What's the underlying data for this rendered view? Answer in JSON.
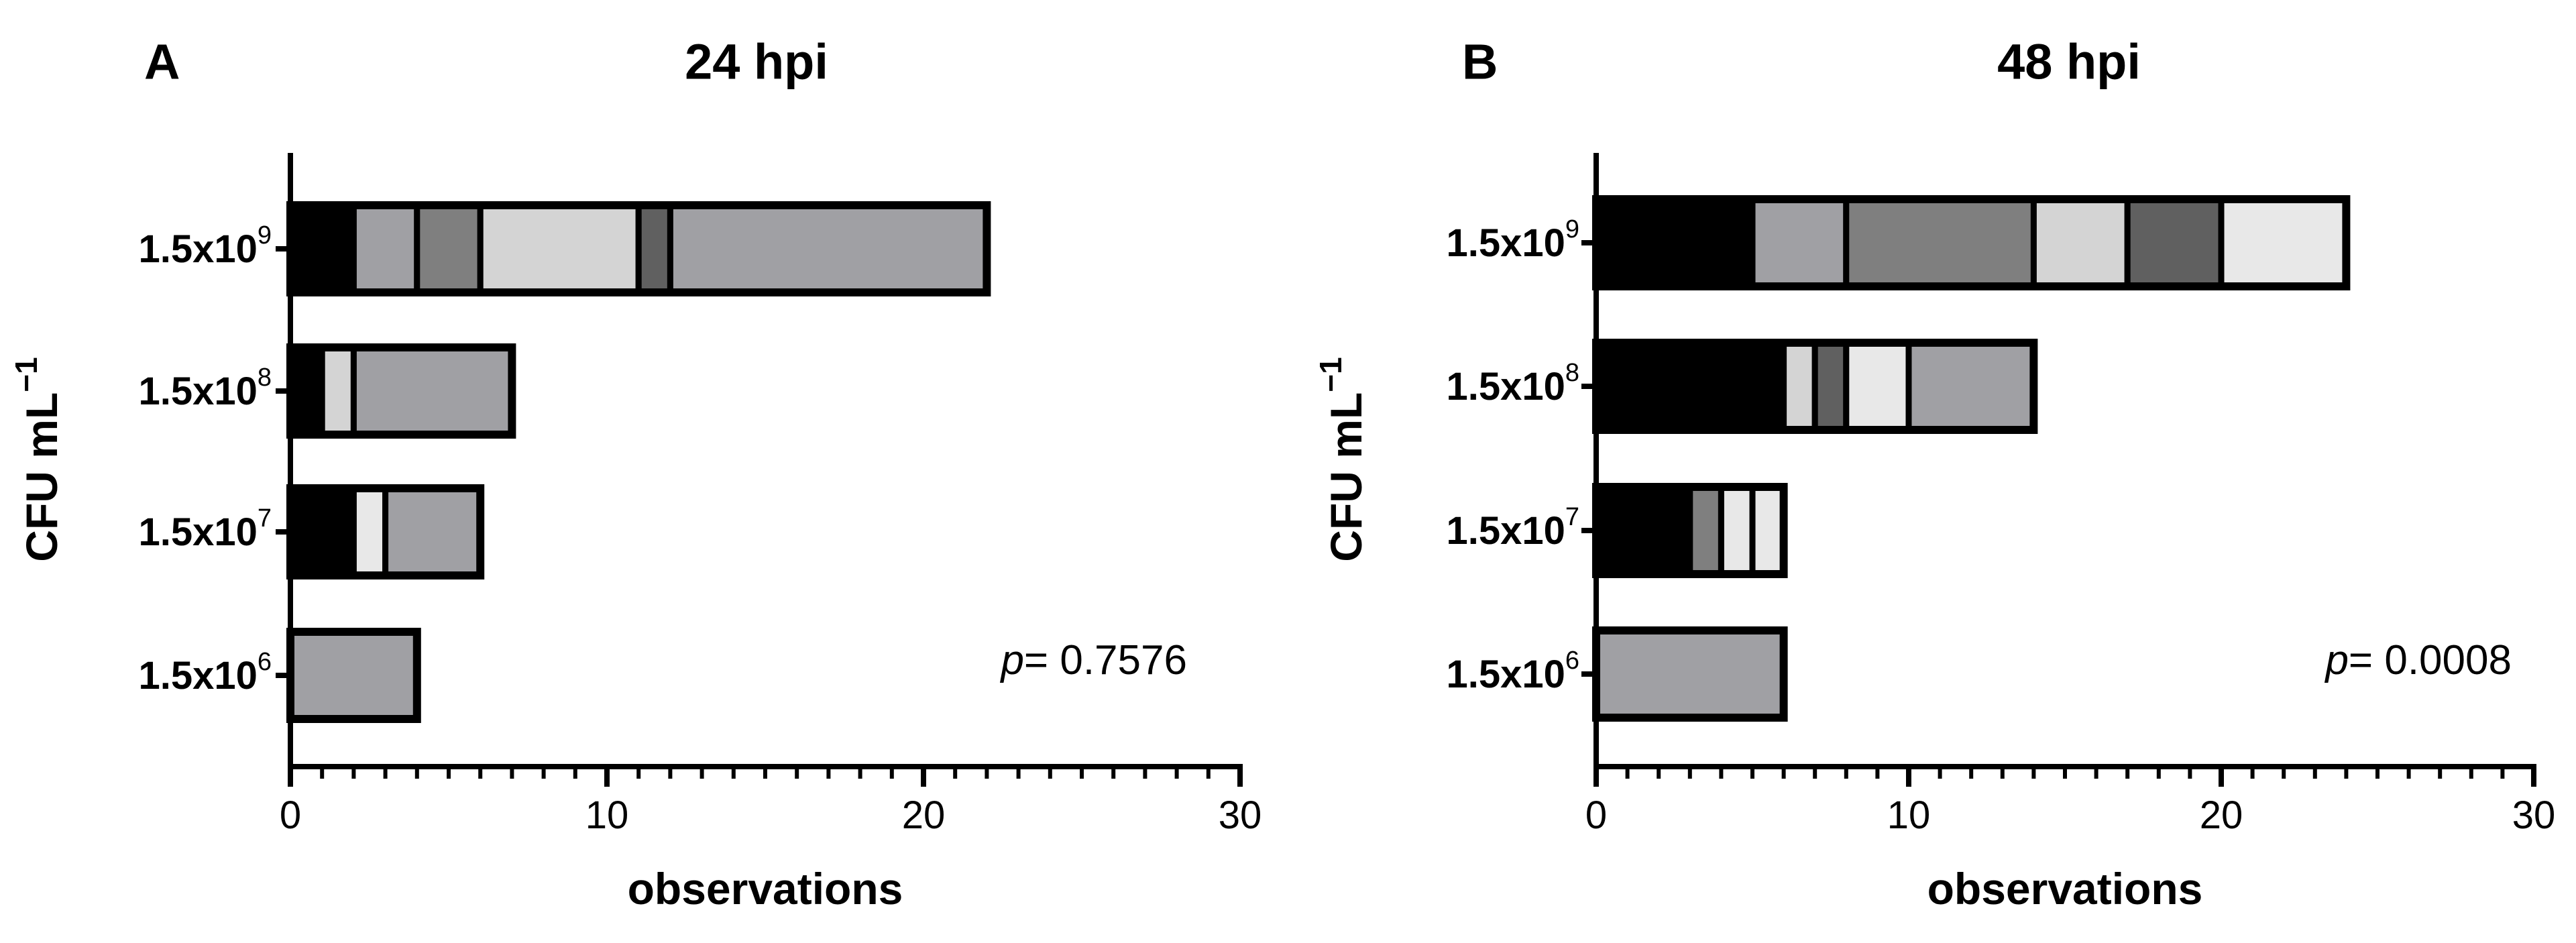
{
  "chart_data": [
    {
      "type": "bar",
      "orientation": "horizontal",
      "stacked": true,
      "panel_label": "A",
      "title": "24 hpi",
      "xlabel": "observations",
      "ylabel": {
        "main": "CFU mL",
        "exponent": "−1"
      },
      "xlim": [
        0,
        30
      ],
      "x_ticks": [
        0,
        10,
        20,
        30
      ],
      "x_tick_labels": [
        "0",
        "10",
        "20",
        "30"
      ],
      "categories": [
        {
          "base": "1.5x10",
          "exponent": "9"
        },
        {
          "base": "1.5x10",
          "exponent": "8"
        },
        {
          "base": "1.5x10",
          "exponent": "7"
        },
        {
          "base": "1.5x10",
          "exponent": "6"
        }
      ],
      "bars": [
        {
          "segments": [
            {
              "value": 2,
              "color": "#000000"
            },
            {
              "value": 2,
              "color": "#a0a0a4"
            },
            {
              "value": 2,
              "color": "#7f7f7f"
            },
            {
              "value": 5,
              "color": "#d4d4d4"
            },
            {
              "value": 1,
              "color": "#606060"
            },
            {
              "value": 10,
              "color": "#a0a0a4"
            }
          ]
        },
        {
          "segments": [
            {
              "value": 1,
              "color": "#000000"
            },
            {
              "value": 1,
              "color": "#d4d4d4"
            },
            {
              "value": 5,
              "color": "#a0a0a4"
            }
          ]
        },
        {
          "segments": [
            {
              "value": 2,
              "color": "#000000"
            },
            {
              "value": 1,
              "color": "#e8e8e8"
            },
            {
              "value": 3,
              "color": "#a0a0a4"
            }
          ]
        },
        {
          "segments": [
            {
              "value": 4,
              "color": "#a0a0a4"
            }
          ]
        }
      ],
      "annotation": {
        "italic": "p",
        "text": "= 0.7576"
      },
      "grid": false,
      "legend": "none"
    },
    {
      "type": "bar",
      "orientation": "horizontal",
      "stacked": true,
      "panel_label": "B",
      "title": "48 hpi",
      "xlabel": "observations",
      "ylabel": {
        "main": "CFU mL",
        "exponent": "−1"
      },
      "xlim": [
        0,
        30
      ],
      "x_ticks": [
        0,
        10,
        20,
        30
      ],
      "x_tick_labels": [
        "0",
        "10",
        "20",
        "30"
      ],
      "categories": [
        {
          "base": "1.5x10",
          "exponent": "9"
        },
        {
          "base": "1.5x10",
          "exponent": "8"
        },
        {
          "base": "1.5x10",
          "exponent": "7"
        },
        {
          "base": "1.5x10",
          "exponent": "6"
        }
      ],
      "bars": [
        {
          "segments": [
            {
              "value": 5,
              "color": "#000000"
            },
            {
              "value": 3,
              "color": "#a0a0a4"
            },
            {
              "value": 6,
              "color": "#7f7f7f"
            },
            {
              "value": 3,
              "color": "#d4d4d4"
            },
            {
              "value": 3,
              "color": "#606060"
            },
            {
              "value": 4,
              "color": "#e8e8e8"
            }
          ]
        },
        {
          "segments": [
            {
              "value": 6,
              "color": "#000000"
            },
            {
              "value": 1,
              "color": "#d4d4d4"
            },
            {
              "value": 1,
              "color": "#606060"
            },
            {
              "value": 2,
              "color": "#e8e8e8"
            },
            {
              "value": 4,
              "color": "#a0a0a4"
            }
          ]
        },
        {
          "segments": [
            {
              "value": 3,
              "color": "#000000"
            },
            {
              "value": 1,
              "color": "#7f7f7f"
            },
            {
              "value": 1,
              "color": "#e8e8e8"
            },
            {
              "value": 1,
              "color": "#e8e8e8"
            }
          ]
        },
        {
          "segments": [
            {
              "value": 6,
              "color": "#a0a0a4"
            }
          ]
        }
      ],
      "annotation": {
        "italic": "p",
        "text": "= 0.0008"
      },
      "grid": false,
      "legend": "none"
    }
  ]
}
